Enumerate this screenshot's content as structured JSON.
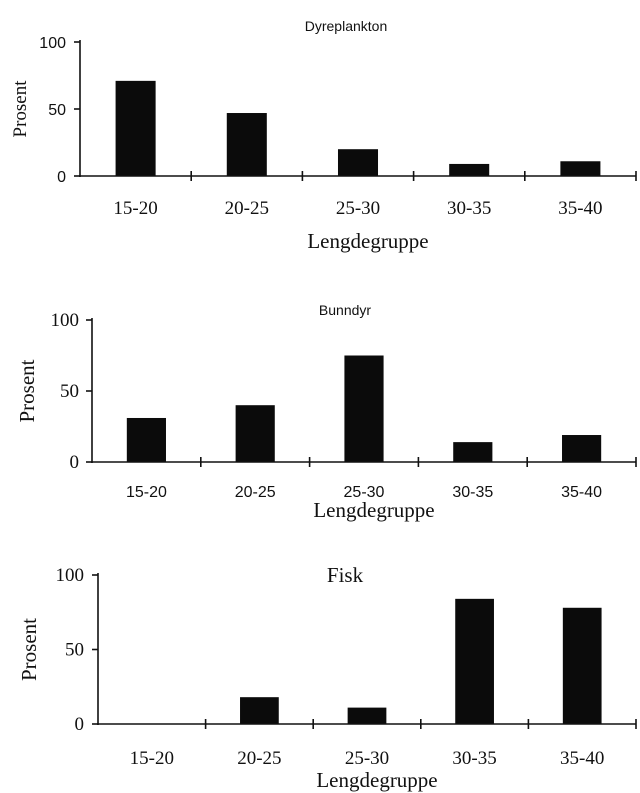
{
  "chart_data": [
    {
      "type": "bar",
      "title": "Dyreplankton",
      "xlabel": "Lengdegruppe",
      "ylabel": "Prosent",
      "categories": [
        "15-20",
        "20-25",
        "25-30",
        "30-35",
        "35-40"
      ],
      "values": [
        71,
        47,
        20,
        9,
        11
      ],
      "ylim": [
        0,
        100
      ],
      "yticks": [
        "0",
        "50",
        "100"
      ],
      "grid": false,
      "legend": "none"
    },
    {
      "type": "bar",
      "title": "Bunndyr",
      "xlabel": "Lengdegruppe",
      "ylabel": "Prosent",
      "categories": [
        "15-20",
        "20-25",
        "25-30",
        "30-35",
        "35-40"
      ],
      "values": [
        31,
        40,
        75,
        14,
        19
      ],
      "ylim": [
        0,
        100
      ],
      "yticks": [
        "0",
        "50",
        "100"
      ],
      "grid": false,
      "legend": "none"
    },
    {
      "type": "bar",
      "title": "Fisk",
      "xlabel": "Lengdegruppe",
      "ylabel": "Prosent",
      "categories": [
        "15-20",
        "20-25",
        "25-30",
        "30-35",
        "35-40"
      ],
      "values": [
        0,
        18,
        11,
        84,
        78
      ],
      "ylim": [
        0,
        100
      ],
      "yticks": [
        "0",
        "50",
        "100"
      ],
      "grid": false,
      "legend": "none"
    }
  ],
  "colors": {
    "bar": "#0b0b0b",
    "axis": "#111111"
  }
}
